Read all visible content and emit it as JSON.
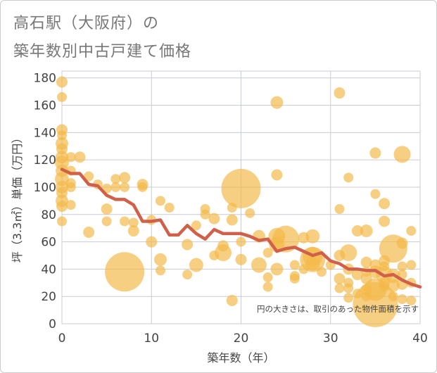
{
  "title_line1": "高石駅（大阪府）の",
  "title_line2": "築年数別中古戸建て価格",
  "colors": {
    "bubble": "#f3b847",
    "line": "#d0604a",
    "grid": "#c8ccd4",
    "text": "#444444",
    "title": "#777777"
  },
  "chart_data": {
    "type": "scatter",
    "xlabel": "築年数（年）",
    "ylabel": "坪（3.3㎡）単価（万円）",
    "xlim": [
      0,
      40
    ],
    "ylim": [
      0,
      185
    ],
    "xticks": [
      0,
      10,
      20,
      30,
      40
    ],
    "yticks": [
      0,
      20,
      40,
      60,
      80,
      100,
      120,
      140,
      160,
      180
    ],
    "grid": true,
    "annotation": "円の大きさは、取引のあった物件面積を示す",
    "scatter_points": [
      {
        "x": 0,
        "y": 177,
        "size": 8
      },
      {
        "x": 0,
        "y": 166,
        "size": 7
      },
      {
        "x": 0,
        "y": 142,
        "size": 8
      },
      {
        "x": 0,
        "y": 138,
        "size": 7
      },
      {
        "x": 0,
        "y": 132,
        "size": 9
      },
      {
        "x": 0,
        "y": 128,
        "size": 8
      },
      {
        "x": 0,
        "y": 122,
        "size": 9
      },
      {
        "x": 0,
        "y": 118,
        "size": 10
      },
      {
        "x": 0,
        "y": 112,
        "size": 9
      },
      {
        "x": 0,
        "y": 106,
        "size": 10
      },
      {
        "x": 0,
        "y": 100,
        "size": 9
      },
      {
        "x": 0,
        "y": 96,
        "size": 8
      },
      {
        "x": 0,
        "y": 90,
        "size": 9
      },
      {
        "x": 0,
        "y": 86,
        "size": 8
      },
      {
        "x": 0,
        "y": 75,
        "size": 7
      },
      {
        "x": 1,
        "y": 122,
        "size": 7
      },
      {
        "x": 1,
        "y": 112,
        "size": 7
      },
      {
        "x": 1,
        "y": 103,
        "size": 7
      },
      {
        "x": 1,
        "y": 100,
        "size": 7
      },
      {
        "x": 1,
        "y": 87,
        "size": 7
      },
      {
        "x": 2,
        "y": 122,
        "size": 8
      },
      {
        "x": 3,
        "y": 108,
        "size": 7
      },
      {
        "x": 3,
        "y": 67,
        "size": 8
      },
      {
        "x": 4,
        "y": 102,
        "size": 7
      },
      {
        "x": 5,
        "y": 99,
        "size": 7
      },
      {
        "x": 5,
        "y": 84,
        "size": 8
      },
      {
        "x": 5,
        "y": 75,
        "size": 7
      },
      {
        "x": 6,
        "y": 106,
        "size": 7
      },
      {
        "x": 6,
        "y": 100,
        "size": 7
      },
      {
        "x": 7,
        "y": 107,
        "size": 8
      },
      {
        "x": 7,
        "y": 100,
        "size": 7
      },
      {
        "x": 7,
        "y": 75,
        "size": 7
      },
      {
        "x": 7,
        "y": 38,
        "size": 28
      },
      {
        "x": 8,
        "y": 74,
        "size": 7
      },
      {
        "x": 8,
        "y": 68,
        "size": 8
      },
      {
        "x": 9,
        "y": 102,
        "size": 8
      },
      {
        "x": 9,
        "y": 100,
        "size": 7
      },
      {
        "x": 10,
        "y": 76,
        "size": 7
      },
      {
        "x": 10,
        "y": 60,
        "size": 8
      },
      {
        "x": 11,
        "y": 90,
        "size": 7
      },
      {
        "x": 11,
        "y": 47,
        "size": 9
      },
      {
        "x": 11,
        "y": 39,
        "size": 7
      },
      {
        "x": 12,
        "y": 85,
        "size": 7
      },
      {
        "x": 14,
        "y": 58,
        "size": 8
      },
      {
        "x": 14,
        "y": 36,
        "size": 7
      },
      {
        "x": 15,
        "y": 72,
        "size": 7
      },
      {
        "x": 15,
        "y": 43,
        "size": 10
      },
      {
        "x": 16,
        "y": 84,
        "size": 7
      },
      {
        "x": 16,
        "y": 80,
        "size": 7
      },
      {
        "x": 17,
        "y": 77,
        "size": 8
      },
      {
        "x": 17,
        "y": 50,
        "size": 7
      },
      {
        "x": 18,
        "y": 57,
        "size": 8
      },
      {
        "x": 18,
        "y": 52,
        "size": 12
      },
      {
        "x": 19,
        "y": 85,
        "size": 7
      },
      {
        "x": 19,
        "y": 76,
        "size": 8
      },
      {
        "x": 19,
        "y": 17,
        "size": 8
      },
      {
        "x": 20,
        "y": 99,
        "size": 28
      },
      {
        "x": 20,
        "y": 60,
        "size": 7
      },
      {
        "x": 20,
        "y": 47,
        "size": 8
      },
      {
        "x": 21,
        "y": 81,
        "size": 7
      },
      {
        "x": 22,
        "y": 64,
        "size": 9
      },
      {
        "x": 22,
        "y": 43,
        "size": 11
      },
      {
        "x": 23,
        "y": 52,
        "size": 7
      },
      {
        "x": 23,
        "y": 34,
        "size": 7
      },
      {
        "x": 23,
        "y": 27,
        "size": 7
      },
      {
        "x": 24,
        "y": 162,
        "size": 9
      },
      {
        "x": 24,
        "y": 109,
        "size": 8
      },
      {
        "x": 24,
        "y": 64,
        "size": 12
      },
      {
        "x": 24,
        "y": 58,
        "size": 11
      },
      {
        "x": 24,
        "y": 40,
        "size": 9
      },
      {
        "x": 25,
        "y": 62,
        "size": 19
      },
      {
        "x": 26,
        "y": 43,
        "size": 7
      },
      {
        "x": 26,
        "y": 35,
        "size": 7
      },
      {
        "x": 26,
        "y": 33,
        "size": 7
      },
      {
        "x": 27,
        "y": 63,
        "size": 8
      },
      {
        "x": 27,
        "y": 40,
        "size": 7
      },
      {
        "x": 28,
        "y": 64,
        "size": 10
      },
      {
        "x": 28,
        "y": 49,
        "size": 14
      },
      {
        "x": 28,
        "y": 44,
        "size": 10
      },
      {
        "x": 28,
        "y": 47,
        "size": 18
      },
      {
        "x": 29,
        "y": 38,
        "size": 7
      },
      {
        "x": 30,
        "y": 43,
        "size": 7
      },
      {
        "x": 31,
        "y": 169,
        "size": 8
      },
      {
        "x": 31,
        "y": 84,
        "size": 7
      },
      {
        "x": 31,
        "y": 50,
        "size": 8
      },
      {
        "x": 31,
        "y": 33,
        "size": 8
      },
      {
        "x": 31,
        "y": 26,
        "size": 7
      },
      {
        "x": 32,
        "y": 107,
        "size": 7
      },
      {
        "x": 32,
        "y": 52,
        "size": 12
      },
      {
        "x": 32,
        "y": 40,
        "size": 8
      },
      {
        "x": 32,
        "y": 30,
        "size": 7
      },
      {
        "x": 32,
        "y": 26,
        "size": 7
      },
      {
        "x": 32,
        "y": 19,
        "size": 7
      },
      {
        "x": 33,
        "y": 68,
        "size": 8
      },
      {
        "x": 33,
        "y": 36,
        "size": 8
      },
      {
        "x": 33,
        "y": 22,
        "size": 7
      },
      {
        "x": 34,
        "y": 68,
        "size": 9
      },
      {
        "x": 34,
        "y": 45,
        "size": 8
      },
      {
        "x": 34,
        "y": 38,
        "size": 7
      },
      {
        "x": 34,
        "y": 33,
        "size": 8
      },
      {
        "x": 34,
        "y": 25,
        "size": 8
      },
      {
        "x": 34,
        "y": 20,
        "size": 7
      },
      {
        "x": 35,
        "y": 125,
        "size": 8
      },
      {
        "x": 35,
        "y": 95,
        "size": 7
      },
      {
        "x": 35,
        "y": 43,
        "size": 8
      },
      {
        "x": 35,
        "y": 38,
        "size": 9
      },
      {
        "x": 35,
        "y": 25,
        "size": 16
      },
      {
        "x": 35,
        "y": 14,
        "size": 32
      },
      {
        "x": 36,
        "y": 88,
        "size": 8
      },
      {
        "x": 36,
        "y": 75,
        "size": 8
      },
      {
        "x": 36,
        "y": 46,
        "size": 8
      },
      {
        "x": 36,
        "y": 42,
        "size": 7
      },
      {
        "x": 36,
        "y": 36,
        "size": 12
      },
      {
        "x": 36,
        "y": 30,
        "size": 8
      },
      {
        "x": 36,
        "y": 27,
        "size": 7
      },
      {
        "x": 37,
        "y": 55,
        "size": 20
      },
      {
        "x": 37,
        "y": 35,
        "size": 10
      },
      {
        "x": 37,
        "y": 28,
        "size": 9
      },
      {
        "x": 37,
        "y": 20,
        "size": 7
      },
      {
        "x": 38,
        "y": 124,
        "size": 12
      },
      {
        "x": 38,
        "y": 59,
        "size": 8
      },
      {
        "x": 38,
        "y": 42,
        "size": 7
      },
      {
        "x": 38,
        "y": 36,
        "size": 7
      },
      {
        "x": 38,
        "y": 29,
        "size": 8
      },
      {
        "x": 38,
        "y": 18,
        "size": 7
      },
      {
        "x": 39,
        "y": 68,
        "size": 7
      },
      {
        "x": 39,
        "y": 43,
        "size": 7
      },
      {
        "x": 39,
        "y": 30,
        "size": 7
      },
      {
        "x": 39,
        "y": 17,
        "size": 7
      }
    ],
    "trend_line": {
      "x": [
        0,
        1,
        2,
        3,
        4,
        5,
        6,
        7,
        8,
        9,
        10,
        11,
        12,
        13,
        14,
        15,
        16,
        17,
        18,
        19,
        20,
        21,
        22,
        23,
        24,
        25,
        26,
        27,
        28,
        29,
        30,
        31,
        32,
        33,
        34,
        35,
        36,
        37,
        38,
        39,
        40
      ],
      "y": [
        113,
        110,
        110,
        102,
        101,
        94,
        91,
        91,
        87,
        75,
        75,
        76,
        65,
        65,
        72,
        66,
        62,
        69,
        66,
        66,
        66,
        64,
        61,
        62,
        53,
        55,
        56,
        53,
        50,
        52,
        46,
        44,
        40,
        40,
        39,
        39,
        35,
        36,
        32,
        29,
        27
      ]
    }
  }
}
